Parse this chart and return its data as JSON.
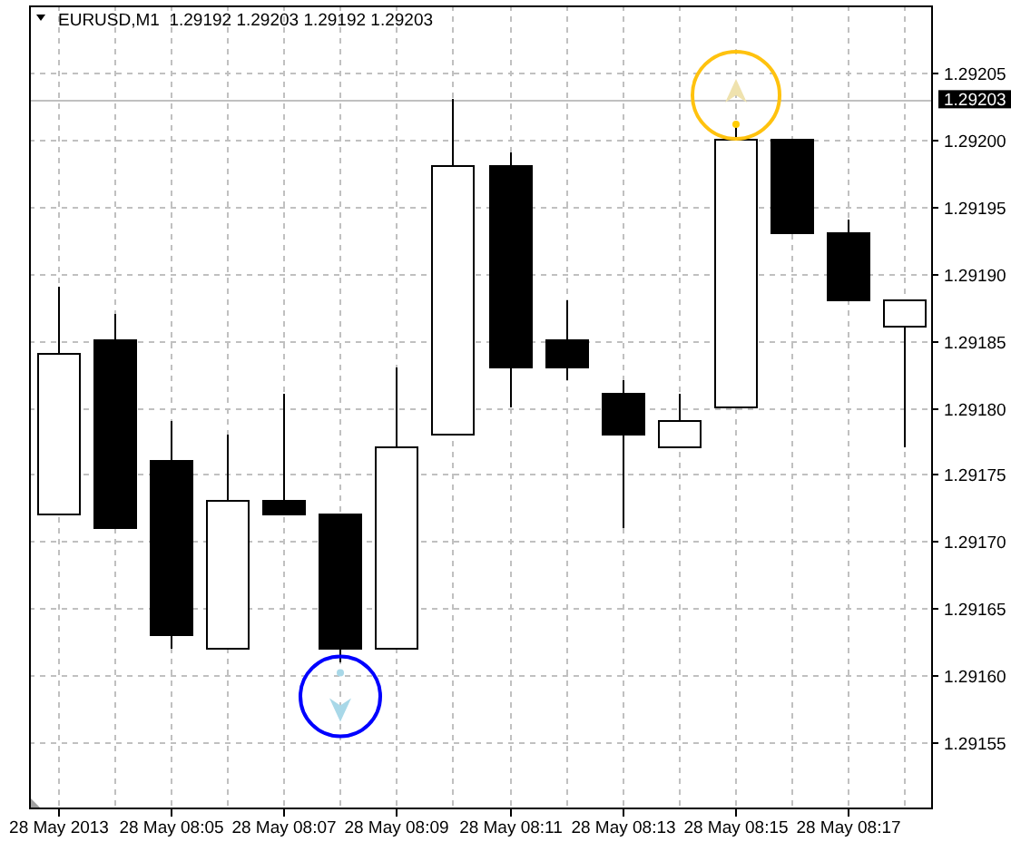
{
  "chart_data": {
    "type": "candlestick",
    "title": "EURUSD,M1  1.29192 1.29203 1.29192 1.29203",
    "categories": [
      "28 May 2013",
      null,
      "28 May 08:05",
      null,
      "28 May 08:07",
      null,
      "28 May 08:09",
      null,
      "28 May 08:11",
      null,
      "28 May 08:13",
      null,
      "28 May 08:15",
      null,
      "28 May 08:17",
      null
    ],
    "ohlc": [
      [
        1.29172,
        1.29189,
        1.29172,
        1.29184
      ],
      [
        1.29185,
        1.29187,
        1.29171,
        1.29171
      ],
      [
        1.29176,
        1.29179,
        1.29162,
        1.29163
      ],
      [
        1.29162,
        1.29178,
        1.29162,
        1.29173
      ],
      [
        1.29173,
        1.29181,
        1.29172,
        1.29172
      ],
      [
        1.29172,
        1.29172,
        1.29161,
        1.29162
      ],
      [
        1.29162,
        1.29183,
        1.29162,
        1.29177
      ],
      [
        1.29178,
        1.29203,
        1.29178,
        1.29198
      ],
      [
        1.29198,
        1.29199,
        1.2918,
        1.29183
      ],
      [
        1.29185,
        1.29188,
        1.29182,
        1.29183
      ],
      [
        1.29181,
        1.29182,
        1.29171,
        1.29178
      ],
      [
        1.29177,
        1.29181,
        1.29177,
        1.29179
      ],
      [
        1.2918,
        1.29201,
        1.2918,
        1.292
      ],
      [
        1.292,
        1.292,
        1.29193,
        1.29193
      ],
      [
        1.29193,
        1.29194,
        1.29188,
        1.29188
      ],
      [
        1.29186,
        1.29188,
        1.29177,
        1.29188
      ]
    ],
    "colors": [
      "#ffffff",
      "#000000",
      "#000000",
      "#ffffff",
      "#000000",
      "#000000",
      "#ffffff",
      "#ffffff",
      "#000000",
      "#000000",
      "#000000",
      "#ffffff",
      "#ffffff",
      "#000000",
      "#000000",
      "#ffffff"
    ],
    "ylim": [
      1.2915,
      1.2921
    ],
    "yticks": [
      1.29155,
      {
        "value": 1.2916,
        "label": "1.29160"
      },
      1.29165,
      {
        "value": 1.2917,
        "label": "1.29170"
      },
      1.29175,
      {
        "value": 1.2918,
        "label": "1.29180"
      },
      1.29185,
      {
        "value": 1.2919,
        "label": "1.29190"
      },
      1.29195,
      {
        "value": 1.292,
        "label": "1.29200"
      },
      1.29205
    ],
    "ref_lines": [
      {
        "axis": "y",
        "value": 1.29203,
        "label": "1.29203",
        "color": "#c0c0c0"
      }
    ],
    "grid": true
  }
}
